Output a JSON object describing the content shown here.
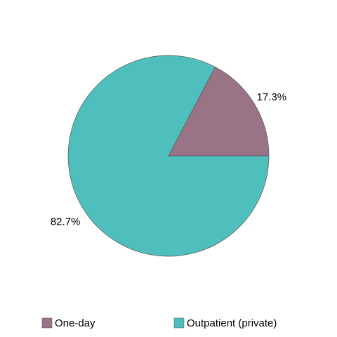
{
  "chart_data": {
    "type": "pie",
    "categories": [
      "One-day",
      "Outpatient (private)"
    ],
    "values": [
      17.3,
      82.7
    ],
    "value_labels": [
      "17.3%",
      "82.7%"
    ],
    "colors": [
      "#9b7387",
      "#4fbfbd"
    ],
    "legend": "bottom"
  }
}
